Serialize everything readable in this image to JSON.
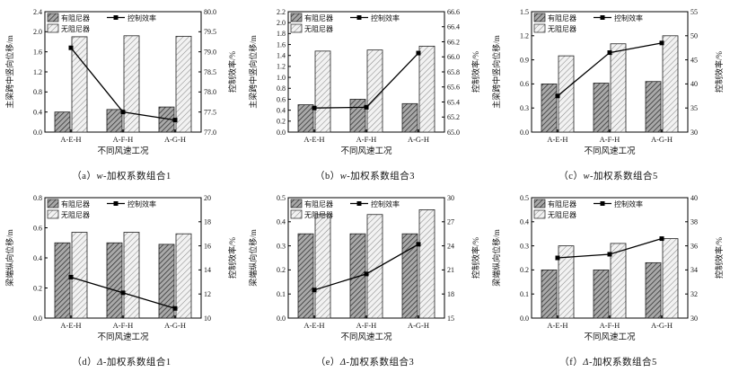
{
  "figure": {
    "xlabel": "不同风速工况",
    "categories": [
      "A-E-H",
      "A-F-H",
      "A-G-H"
    ],
    "legend": {
      "with_damper": "有阻尼器",
      "without_damper": "无阻尼器",
      "efficiency": "控制效率"
    },
    "colors": {
      "axis": "#000000",
      "line": "#000000",
      "bar_with_bg": "#a9a9a9",
      "bar_with_hatch": "#2f2f2f",
      "bar_without_bg": "#f2f2f2",
      "bar_without_hatch": "#8c8c8c"
    }
  },
  "chart_data": [
    {
      "id": "a",
      "type": "bar+line",
      "caption_index": "（a）",
      "caption_var": "w",
      "caption_rest": "-加权系数组合1",
      "ylabel_left": "主梁跨中竖向位移/m",
      "ylabel_right": "控制效率/%",
      "categories": [
        "A-E-H",
        "A-F-H",
        "A-G-H"
      ],
      "ylim_left": [
        0.0,
        2.4
      ],
      "yticks_left": [
        "0.0",
        "0.4",
        "0.8",
        "1.2",
        "1.6",
        "2.0",
        "2.4"
      ],
      "ylim_right": [
        77.0,
        80.0
      ],
      "yticks_right": [
        "77.0",
        "77.5",
        "78.0",
        "78.5",
        "79.0",
        "79.5",
        "80.0"
      ],
      "series": [
        {
          "name": "有阻尼器",
          "type": "bar",
          "axis": "left",
          "values": [
            0.4,
            0.45,
            0.5
          ]
        },
        {
          "name": "无阻尼器",
          "type": "bar",
          "axis": "left",
          "values": [
            1.9,
            1.92,
            1.91
          ]
        },
        {
          "name": "控制效率",
          "type": "line",
          "axis": "right",
          "values": [
            79.1,
            77.5,
            77.3
          ]
        }
      ]
    },
    {
      "id": "b",
      "type": "bar+line",
      "caption_index": "（b）",
      "caption_var": "w",
      "caption_rest": "-加权系数组合3",
      "ylabel_left": "主梁跨中竖向位移/m",
      "ylabel_right": "控制效率/%",
      "categories": [
        "A-E-H",
        "A-F-H",
        "A-G-H"
      ],
      "ylim_left": [
        0.0,
        2.2
      ],
      "yticks_left": [
        "0.0",
        "0.2",
        "0.4",
        "0.6",
        "0.8",
        "1.0",
        "1.2",
        "1.4",
        "1.6",
        "1.8",
        "2.0",
        "2.2"
      ],
      "ylim_right": [
        65.0,
        66.6
      ],
      "yticks_right": [
        "65.0",
        "65.2",
        "65.4",
        "65.6",
        "65.8",
        "66.0",
        "66.2",
        "66.4",
        "66.6"
      ],
      "series": [
        {
          "name": "有阻尼器",
          "type": "bar",
          "axis": "left",
          "values": [
            0.5,
            0.6,
            0.52
          ]
        },
        {
          "name": "无阻尼器",
          "type": "bar",
          "axis": "left",
          "values": [
            1.48,
            1.5,
            1.57
          ]
        },
        {
          "name": "控制效率",
          "type": "line",
          "axis": "right",
          "values": [
            65.32,
            65.33,
            66.05
          ]
        }
      ]
    },
    {
      "id": "c",
      "type": "bar+line",
      "caption_index": "（c）",
      "caption_var": "w",
      "caption_rest": "-加权系数组合5",
      "ylabel_left": "主梁跨中竖向位移/m",
      "ylabel_right": "控制效率/%",
      "categories": [
        "A-E-H",
        "A-F-H",
        "A-G-H"
      ],
      "ylim_left": [
        0.0,
        1.5
      ],
      "yticks_left": [
        "0.0",
        "0.3",
        "0.6",
        "0.9",
        "1.2",
        "1.5"
      ],
      "ylim_right": [
        30,
        55
      ],
      "yticks_right": [
        "30",
        "35",
        "40",
        "45",
        "50",
        "55"
      ],
      "series": [
        {
          "name": "有阻尼器",
          "type": "bar",
          "axis": "left",
          "values": [
            0.6,
            0.61,
            0.63
          ]
        },
        {
          "name": "无阻尼器",
          "type": "bar",
          "axis": "left",
          "values": [
            0.95,
            1.1,
            1.2
          ]
        },
        {
          "name": "控制效率",
          "type": "line",
          "axis": "right",
          "values": [
            37.5,
            46.5,
            48.5
          ]
        }
      ]
    },
    {
      "id": "d",
      "type": "bar+line",
      "caption_index": "（d）",
      "caption_var": "Δ",
      "caption_rest": "-加权系数组合1",
      "ylabel_left": "梁端纵向位移/m",
      "ylabel_right": "控制效率/%",
      "categories": [
        "A-E-H",
        "A-F-H",
        "A-G-H"
      ],
      "ylim_left": [
        0.0,
        0.8
      ],
      "yticks_left": [
        "0.0",
        "0.2",
        "0.4",
        "0.6",
        "0.8"
      ],
      "ylim_right": [
        10,
        20
      ],
      "yticks_right": [
        "10",
        "12",
        "14",
        "16",
        "18",
        "20"
      ],
      "series": [
        {
          "name": "有阻尼器",
          "type": "bar",
          "axis": "left",
          "values": [
            0.5,
            0.5,
            0.49
          ]
        },
        {
          "name": "无阻尼器",
          "type": "bar",
          "axis": "left",
          "values": [
            0.57,
            0.57,
            0.56
          ]
        },
        {
          "name": "控制效率",
          "type": "line",
          "axis": "right",
          "values": [
            13.4,
            12.1,
            10.8
          ]
        }
      ]
    },
    {
      "id": "e",
      "type": "bar+line",
      "caption_index": "（e）",
      "caption_var": "Δ",
      "caption_rest": "-加权系数组合3",
      "ylabel_left": "梁端纵向位移/m",
      "ylabel_right": "控制效率/%",
      "categories": [
        "A-E-H",
        "A-F-H",
        "A-G-H"
      ],
      "ylim_left": [
        0.0,
        0.5
      ],
      "yticks_left": [
        "0.0",
        "0.1",
        "0.2",
        "0.3",
        "0.4",
        "0.5"
      ],
      "ylim_right": [
        15,
        30
      ],
      "yticks_right": [
        "15",
        "18",
        "21",
        "24",
        "27",
        "30"
      ],
      "series": [
        {
          "name": "有阻尼器",
          "type": "bar",
          "axis": "left",
          "values": [
            0.35,
            0.35,
            0.35
          ]
        },
        {
          "name": "无阻尼器",
          "type": "bar",
          "axis": "left",
          "values": [
            0.43,
            0.43,
            0.45
          ]
        },
        {
          "name": "控制效率",
          "type": "line",
          "axis": "right",
          "values": [
            18.5,
            20.5,
            24.2
          ]
        }
      ]
    },
    {
      "id": "f",
      "type": "bar+line",
      "caption_index": "（f）",
      "caption_var": "Δ",
      "caption_rest": "-加权系数组合5",
      "ylabel_left": "梁端纵向位移/m",
      "ylabel_right": "控制效率/%",
      "categories": [
        "A-E-H",
        "A-F-H",
        "A-G-H"
      ],
      "ylim_left": [
        0.0,
        0.5
      ],
      "yticks_left": [
        "0.0",
        "0.1",
        "0.2",
        "0.3",
        "0.4",
        "0.5"
      ],
      "ylim_right": [
        30,
        40
      ],
      "yticks_right": [
        "30",
        "32",
        "34",
        "36",
        "38",
        "40"
      ],
      "series": [
        {
          "name": "有阻尼器",
          "type": "bar",
          "axis": "left",
          "values": [
            0.2,
            0.2,
            0.23
          ]
        },
        {
          "name": "无阻尼器",
          "type": "bar",
          "axis": "left",
          "values": [
            0.3,
            0.31,
            0.33
          ]
        },
        {
          "name": "控制效率",
          "type": "line",
          "axis": "right",
          "values": [
            35.0,
            35.3,
            36.6
          ]
        }
      ]
    }
  ]
}
